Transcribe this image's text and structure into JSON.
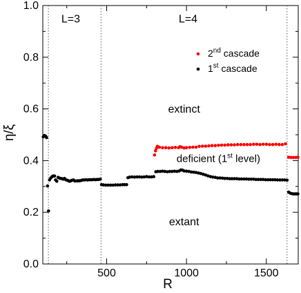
{
  "chart_data": {
    "type": "scatter",
    "xlabel": "R",
    "ylabel": "η/ξ",
    "xlim": [
      100,
      1700
    ],
    "ylim": [
      0,
      1
    ],
    "x_ticks": [
      500,
      1000,
      1500
    ],
    "y_ticks": [
      0.0,
      0.2,
      0.4,
      0.6,
      0.8,
      1.0
    ],
    "x_tick_labels": [
      "500",
      "1000",
      "1500"
    ],
    "y_tick_labels": [
      "0.0",
      "0.2",
      "0.4",
      "0.6",
      "0.8",
      "1.0"
    ],
    "vlines": [
      135,
      465,
      1630
    ],
    "region_labels": [
      {
        "text": "L=3",
        "x": 275,
        "y": 0.935
      },
      {
        "text": "L=4",
        "x": 1010,
        "y": 0.935
      },
      {
        "text": "extinct",
        "x": 985,
        "y": 0.585
      },
      {
        "text": "extant",
        "x": 985,
        "y": 0.15
      }
    ],
    "deficient_label": {
      "main": "deficient (1",
      "sup": "st",
      "tail": " level)",
      "x": 1200,
      "y": 0.395
    },
    "legend": [
      {
        "ord": "2",
        "sup": "nd",
        "text": " cascade",
        "color": "#ff0000"
      },
      {
        "ord": "1",
        "sup": "st",
        "text": " cascade",
        "color": "#000000"
      }
    ],
    "legend_placement": "top-right",
    "series": [
      {
        "color": "#ff0000",
        "points": [
          [
            800,
            0.422
          ],
          [
            806,
            0.438
          ],
          [
            812,
            0.448
          ],
          [
            818,
            0.455
          ],
          [
            830,
            0.452
          ],
          [
            850,
            0.45
          ],
          [
            870,
            0.45
          ],
          [
            890,
            0.449
          ],
          [
            910,
            0.45
          ],
          [
            930,
            0.451
          ],
          [
            950,
            0.45
          ],
          [
            960,
            0.454
          ],
          [
            970,
            0.452
          ],
          [
            985,
            0.449
          ],
          [
            1000,
            0.45
          ],
          [
            1020,
            0.451
          ],
          [
            1040,
            0.452
          ],
          [
            1060,
            0.452
          ],
          [
            1080,
            0.455
          ],
          [
            1100,
            0.456
          ],
          [
            1120,
            0.456
          ],
          [
            1140,
            0.457
          ],
          [
            1160,
            0.458
          ],
          [
            1180,
            0.458
          ],
          [
            1200,
            0.459
          ],
          [
            1220,
            0.46
          ],
          [
            1240,
            0.46
          ],
          [
            1260,
            0.461
          ],
          [
            1280,
            0.461
          ],
          [
            1300,
            0.461
          ],
          [
            1320,
            0.462
          ],
          [
            1340,
            0.462
          ],
          [
            1360,
            0.462
          ],
          [
            1380,
            0.462
          ],
          [
            1400,
            0.462
          ],
          [
            1420,
            0.463
          ],
          [
            1440,
            0.463
          ],
          [
            1460,
            0.462
          ],
          [
            1480,
            0.463
          ],
          [
            1500,
            0.463
          ],
          [
            1520,
            0.462
          ],
          [
            1540,
            0.462
          ],
          [
            1560,
            0.463
          ],
          [
            1580,
            0.462
          ],
          [
            1600,
            0.462
          ],
          [
            1620,
            0.465
          ],
          [
            1640,
            0.413
          ],
          [
            1655,
            0.412
          ],
          [
            1670,
            0.412
          ],
          [
            1685,
            0.412
          ],
          [
            1698,
            0.413
          ]
        ]
      },
      {
        "color": "#000000",
        "points": [
          [
            103,
            0.492
          ],
          [
            110,
            0.497
          ],
          [
            117,
            0.495
          ],
          [
            124,
            0.489
          ],
          [
            130,
            0.302
          ],
          [
            136,
            0.205
          ],
          [
            142,
            0.325
          ],
          [
            150,
            0.333
          ],
          [
            158,
            0.338
          ],
          [
            166,
            0.341
          ],
          [
            174,
            0.34
          ],
          [
            180,
            0.325
          ],
          [
            188,
            0.32
          ],
          [
            196,
            0.335
          ],
          [
            204,
            0.332
          ],
          [
            212,
            0.331
          ],
          [
            220,
            0.33
          ],
          [
            228,
            0.328
          ],
          [
            236,
            0.331
          ],
          [
            244,
            0.326
          ],
          [
            252,
            0.324
          ],
          [
            260,
            0.322
          ],
          [
            268,
            0.32
          ],
          [
            276,
            0.322
          ],
          [
            284,
            0.324
          ],
          [
            292,
            0.325
          ],
          [
            300,
            0.321
          ],
          [
            310,
            0.321
          ],
          [
            320,
            0.322
          ],
          [
            330,
            0.322
          ],
          [
            340,
            0.323
          ],
          [
            350,
            0.325
          ],
          [
            360,
            0.325
          ],
          [
            370,
            0.326
          ],
          [
            380,
            0.325
          ],
          [
            390,
            0.326
          ],
          [
            400,
            0.326
          ],
          [
            410,
            0.326
          ],
          [
            420,
            0.327
          ],
          [
            430,
            0.326
          ],
          [
            440,
            0.327
          ],
          [
            450,
            0.327
          ],
          [
            460,
            0.328
          ],
          [
            468,
            0.307
          ],
          [
            480,
            0.306
          ],
          [
            495,
            0.305
          ],
          [
            510,
            0.305
          ],
          [
            525,
            0.305
          ],
          [
            540,
            0.305
          ],
          [
            555,
            0.306
          ],
          [
            570,
            0.306
          ],
          [
            585,
            0.306
          ],
          [
            600,
            0.307
          ],
          [
            612,
            0.307
          ],
          [
            625,
            0.307
          ],
          [
            633,
            0.334
          ],
          [
            645,
            0.336
          ],
          [
            660,
            0.337
          ],
          [
            675,
            0.336
          ],
          [
            690,
            0.337
          ],
          [
            705,
            0.337
          ],
          [
            720,
            0.336
          ],
          [
            735,
            0.337
          ],
          [
            750,
            0.338
          ],
          [
            765,
            0.337
          ],
          [
            780,
            0.337
          ],
          [
            795,
            0.338
          ],
          [
            808,
            0.357
          ],
          [
            820,
            0.358
          ],
          [
            835,
            0.358
          ],
          [
            850,
            0.359
          ],
          [
            865,
            0.358
          ],
          [
            880,
            0.357
          ],
          [
            895,
            0.358
          ],
          [
            910,
            0.358
          ],
          [
            925,
            0.359
          ],
          [
            940,
            0.358
          ],
          [
            955,
            0.36
          ],
          [
            965,
            0.364
          ],
          [
            975,
            0.363
          ],
          [
            985,
            0.36
          ],
          [
            1000,
            0.359
          ],
          [
            1015,
            0.358
          ],
          [
            1030,
            0.356
          ],
          [
            1045,
            0.355
          ],
          [
            1060,
            0.354
          ],
          [
            1075,
            0.352
          ],
          [
            1090,
            0.35
          ],
          [
            1105,
            0.347
          ],
          [
            1120,
            0.344
          ],
          [
            1135,
            0.341
          ],
          [
            1150,
            0.338
          ],
          [
            1165,
            0.336
          ],
          [
            1180,
            0.335
          ],
          [
            1195,
            0.333
          ],
          [
            1210,
            0.333
          ],
          [
            1225,
            0.332
          ],
          [
            1240,
            0.331
          ],
          [
            1255,
            0.331
          ],
          [
            1270,
            0.33
          ],
          [
            1285,
            0.33
          ],
          [
            1300,
            0.33
          ],
          [
            1315,
            0.33
          ],
          [
            1330,
            0.329
          ],
          [
            1345,
            0.329
          ],
          [
            1360,
            0.329
          ],
          [
            1375,
            0.329
          ],
          [
            1390,
            0.328
          ],
          [
            1405,
            0.328
          ],
          [
            1420,
            0.328
          ],
          [
            1435,
            0.327
          ],
          [
            1450,
            0.327
          ],
          [
            1465,
            0.327
          ],
          [
            1480,
            0.327
          ],
          [
            1495,
            0.326
          ],
          [
            1510,
            0.326
          ],
          [
            1525,
            0.326
          ],
          [
            1540,
            0.326
          ],
          [
            1555,
            0.326
          ],
          [
            1570,
            0.325
          ],
          [
            1585,
            0.325
          ],
          [
            1600,
            0.325
          ],
          [
            1615,
            0.325
          ],
          [
            1630,
            0.324
          ],
          [
            1640,
            0.278
          ],
          [
            1650,
            0.274
          ],
          [
            1660,
            0.272
          ],
          [
            1670,
            0.271
          ],
          [
            1680,
            0.271
          ],
          [
            1690,
            0.271
          ],
          [
            1698,
            0.271
          ]
        ]
      }
    ]
  }
}
